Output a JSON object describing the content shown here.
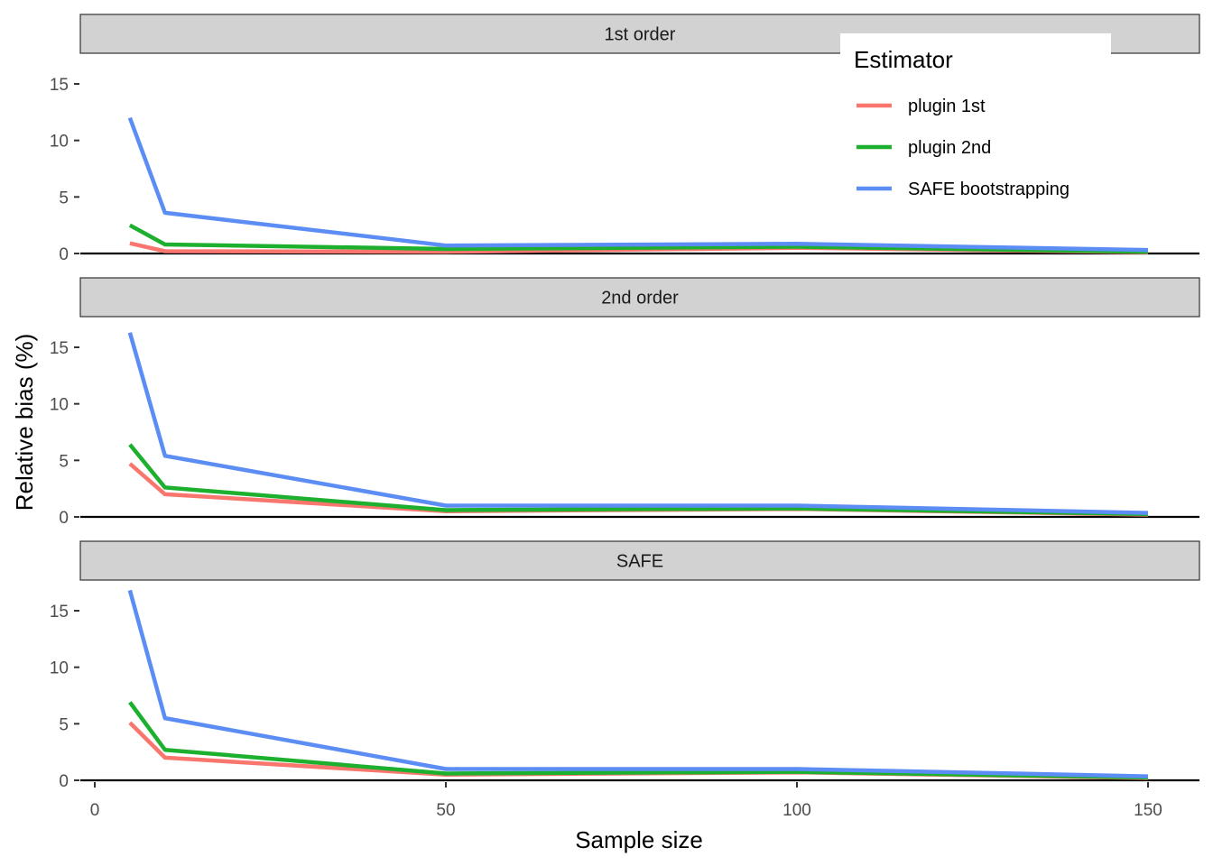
{
  "chart_data": {
    "type": "line",
    "facet_layout": "vertical",
    "x": [
      5,
      10,
      50,
      100,
      150
    ],
    "xlabel": "Sample size",
    "ylabel": "Relative bias (%)",
    "xlim": [
      0,
      150
    ],
    "ylim": [
      0,
      16.5
    ],
    "x_ticks": [
      0,
      50,
      100,
      150
    ],
    "y_ticks": [
      0,
      5,
      10,
      15
    ],
    "grid": false,
    "legend": {
      "title": "Estimator",
      "placement": "top-right",
      "entries": [
        {
          "name": "plugin 1st",
          "color": "#F8766D"
        },
        {
          "name": "plugin 2nd",
          "color": "#1DB02E"
        },
        {
          "name": "SAFE bootstrapping",
          "color": "#5B8DF5"
        }
      ]
    },
    "panels": [
      {
        "strip": "1st order",
        "series": [
          {
            "name": "plugin 1st",
            "values": [
              0.9,
              0.2,
              0.15,
              0.5,
              0.1
            ]
          },
          {
            "name": "plugin 2nd",
            "values": [
              2.5,
              0.8,
              0.4,
              0.6,
              0.15
            ]
          },
          {
            "name": "SAFE bootstrapping",
            "values": [
              12.0,
              3.6,
              0.7,
              0.85,
              0.3
            ]
          }
        ]
      },
      {
        "strip": "2nd order",
        "series": [
          {
            "name": "plugin 1st",
            "values": [
              4.7,
              2.0,
              0.5,
              0.7,
              0.2
            ]
          },
          {
            "name": "plugin 2nd",
            "values": [
              6.4,
              2.6,
              0.6,
              0.75,
              0.25
            ]
          },
          {
            "name": "SAFE bootstrapping",
            "values": [
              16.3,
              5.4,
              1.0,
              1.0,
              0.35
            ]
          }
        ]
      },
      {
        "strip": "SAFE",
        "series": [
          {
            "name": "plugin 1st",
            "values": [
              5.1,
              2.0,
              0.5,
              0.7,
              0.2
            ]
          },
          {
            "name": "plugin 2nd",
            "values": [
              6.9,
              2.7,
              0.6,
              0.75,
              0.25
            ]
          },
          {
            "name": "SAFE bootstrapping",
            "values": [
              16.8,
              5.5,
              1.0,
              1.0,
              0.35
            ]
          }
        ]
      }
    ]
  }
}
